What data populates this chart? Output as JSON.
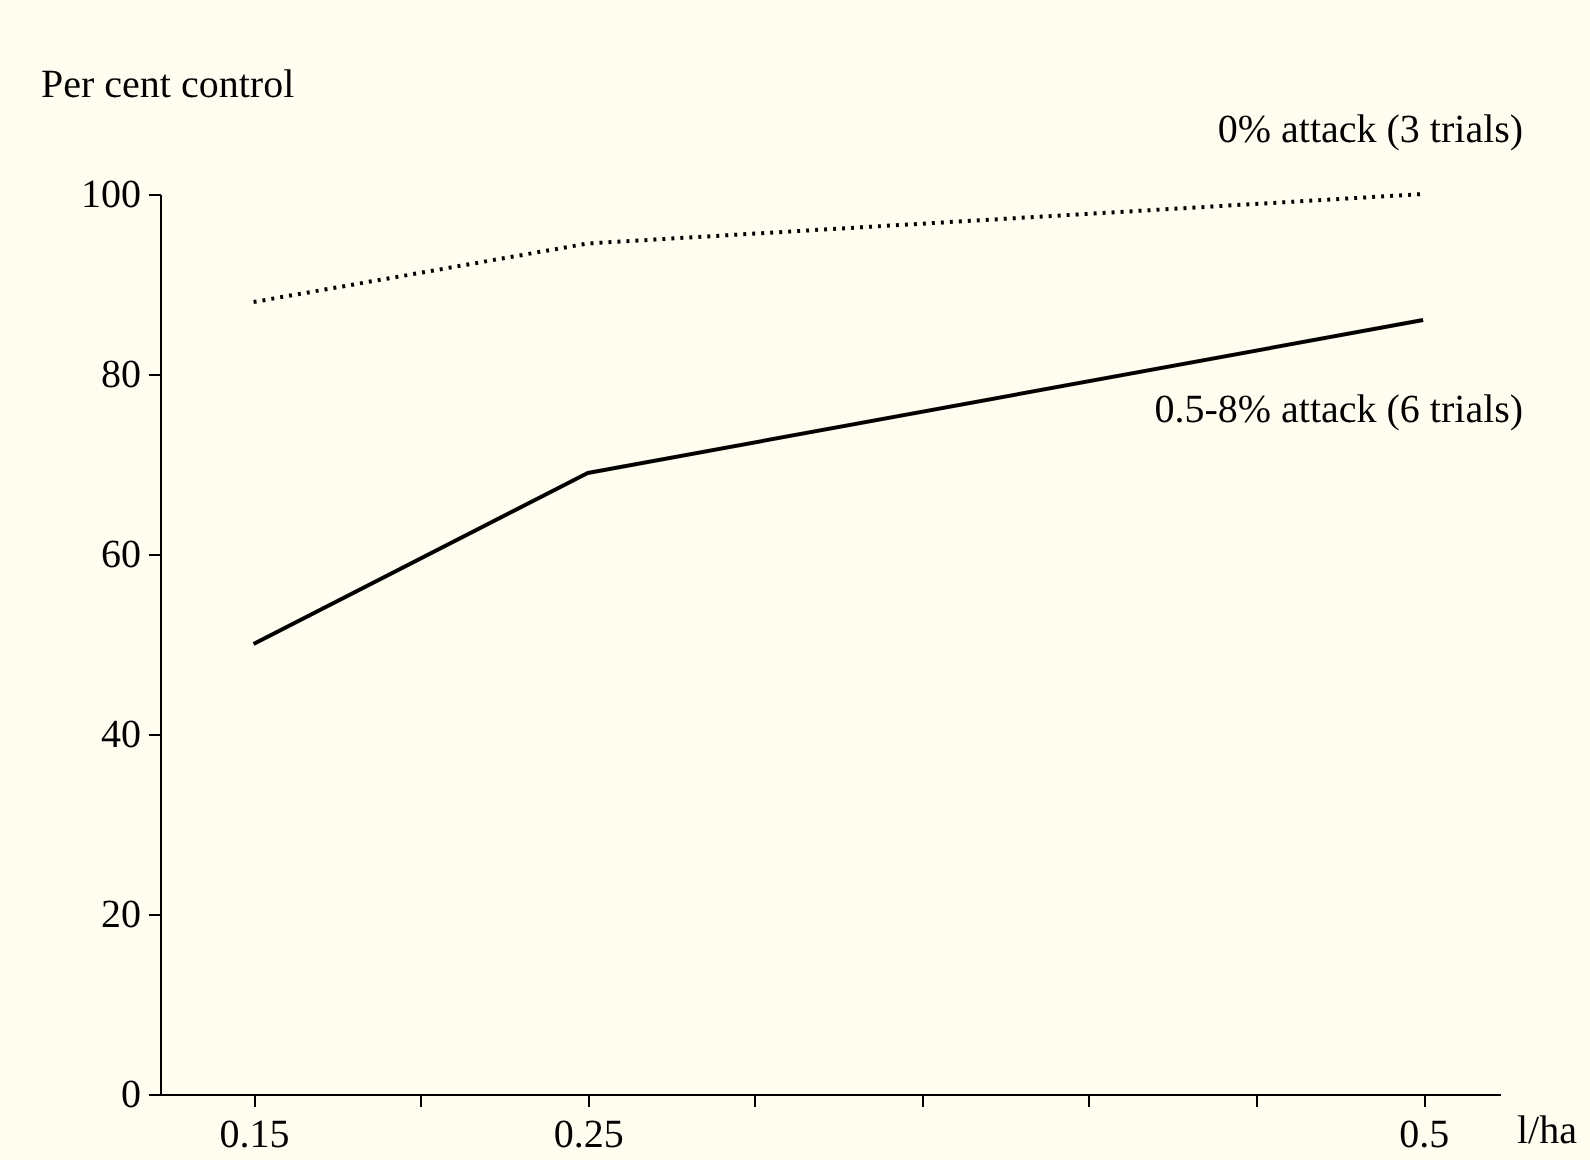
{
  "chart_data": {
    "type": "line",
    "xlabel": "l/ha",
    "ylabel": "Per cent control",
    "x": [
      0.15,
      0.25,
      0.5
    ],
    "series": [
      {
        "name": "0% attack (3 trials)",
        "color": "#000000",
        "line_style": "dotted",
        "values": [
          88,
          94.5,
          100
        ]
      },
      {
        "name": "0.5-8% attack (6 trials)",
        "color": "#000000",
        "line_style": "solid",
        "values": [
          50,
          69,
          86
        ]
      }
    ],
    "xlim": [
      0.122,
      0.523
    ],
    "ylim": [
      0,
      100
    ],
    "xticks": [
      0.15,
      {
        "value": 0.2,
        "label": null
      },
      0.25,
      {
        "value": 0.3,
        "label": null
      },
      {
        "value": 0.35,
        "label": null
      },
      {
        "value": 0.4,
        "label": null
      },
      {
        "value": 0.45,
        "label": null
      },
      0.5
    ],
    "yticks": [
      0,
      20,
      40,
      60,
      80,
      100
    ],
    "grid": false,
    "marker": "none"
  }
}
